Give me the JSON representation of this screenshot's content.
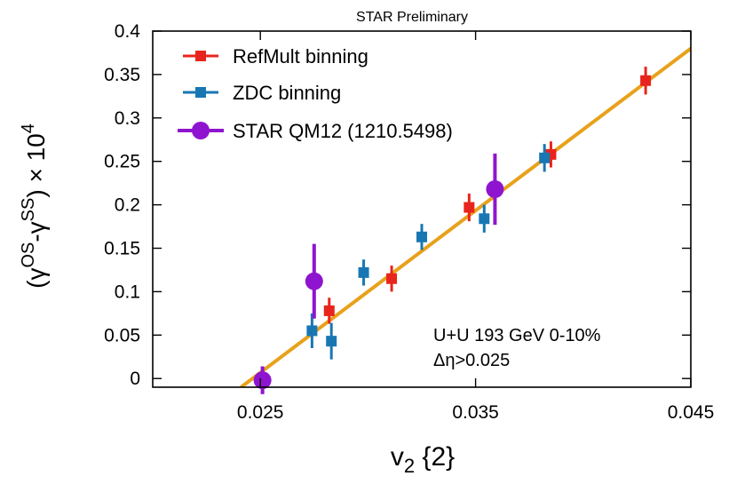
{
  "chart_data": {
    "type": "scatter",
    "title": "STAR Preliminary",
    "xlabel": {
      "main": "v",
      "sub": "2",
      "tail": " {2}"
    },
    "ylabel": {
      "pre": "(γ",
      "sup1": "OS",
      "mid": "-γ",
      "sup2": "SS",
      "post": ") × 10",
      "sup3": "4"
    },
    "xlim": [
      0.02,
      0.045
    ],
    "ylim": [
      -0.01,
      0.4
    ],
    "xticks": [
      0.025,
      0.035,
      0.045
    ],
    "xtick_labels": [
      "0.025",
      "0.035",
      "0.045"
    ],
    "yticks": [
      0,
      0.05,
      0.1,
      0.15,
      0.2,
      0.25,
      0.3,
      0.35,
      0.4
    ],
    "ytick_labels": [
      "0",
      "0.05",
      "0.1",
      "0.15",
      "0.2",
      "0.25",
      "0.3",
      "0.35",
      "0.4"
    ],
    "grid": false,
    "legend_position": "top-left",
    "series": [
      {
        "name": "RefMult binning",
        "color": "#e8251c",
        "marker": "square",
        "points": [
          {
            "x": 0.0282,
            "y": 0.078,
            "err": 0.015
          },
          {
            "x": 0.0311,
            "y": 0.115,
            "err": 0.015
          },
          {
            "x": 0.0347,
            "y": 0.197,
            "err": 0.016
          },
          {
            "x": 0.0385,
            "y": 0.258,
            "err": 0.015
          },
          {
            "x": 0.0429,
            "y": 0.343,
            "err": 0.016
          }
        ]
      },
      {
        "name": "ZDC binning",
        "color": "#1877b3",
        "marker": "square",
        "points": [
          {
            "x": 0.0274,
            "y": 0.055,
            "err": 0.02
          },
          {
            "x": 0.0283,
            "y": 0.043,
            "err": 0.021
          },
          {
            "x": 0.0298,
            "y": 0.122,
            "err": 0.015
          },
          {
            "x": 0.0325,
            "y": 0.163,
            "err": 0.015
          },
          {
            "x": 0.0354,
            "y": 0.184,
            "err": 0.016
          },
          {
            "x": 0.0382,
            "y": 0.254,
            "err": 0.016
          }
        ]
      },
      {
        "name": "STAR QM12 (1210.5498)",
        "color": "#8f14cf",
        "marker": "circle",
        "points": [
          {
            "x": 0.0251,
            "y": -0.002,
            "err": 0.016
          },
          {
            "x": 0.0275,
            "y": 0.112,
            "err": 0.043
          },
          {
            "x": 0.0359,
            "y": 0.218,
            "err": 0.041
          }
        ]
      }
    ],
    "fit_line": {
      "color": "#e8a11a",
      "points": [
        [
          0.0241,
          -0.01
        ],
        [
          0.045,
          0.38
        ]
      ]
    },
    "annotations": [
      "U+U 193 GeV 0-10%",
      "Δη>0.025"
    ]
  }
}
